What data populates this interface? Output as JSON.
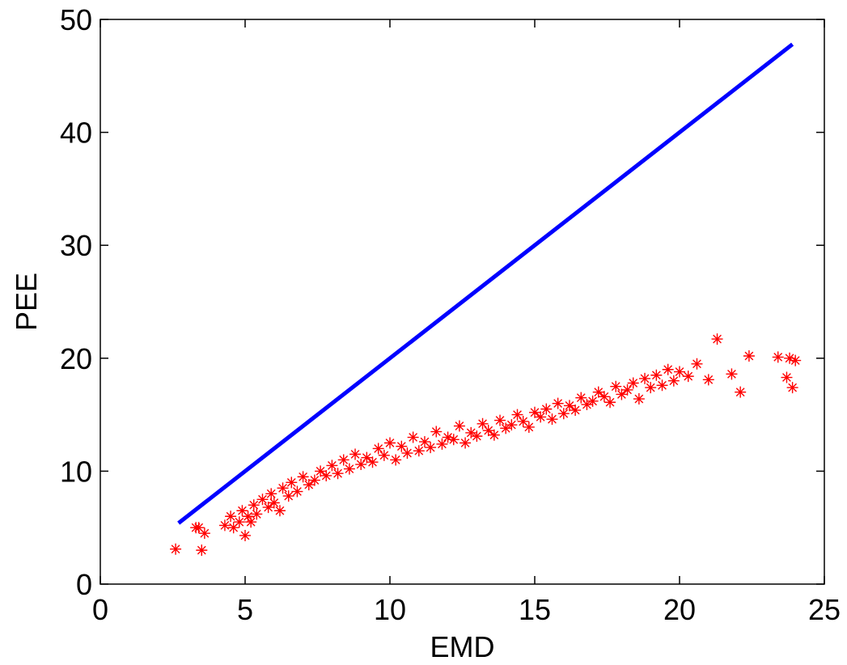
{
  "chart_data": {
    "type": "scatter",
    "title": "",
    "xlabel": "EMD",
    "ylabel": "PEE",
    "xlim": [
      0,
      25
    ],
    "ylim": [
      0,
      50
    ],
    "xticks": [
      0,
      5,
      10,
      15,
      20,
      25
    ],
    "yticks": [
      0,
      10,
      20,
      30,
      40,
      50
    ],
    "grid": false,
    "legend": "none",
    "colors": {
      "line": "#0000ff",
      "points": "#ff0000",
      "axes": "#000000"
    },
    "line": {
      "x": [
        2.7,
        23.9
      ],
      "y": [
        5.4,
        47.8
      ]
    },
    "points": {
      "marker": "asterisk",
      "x": [
        2.6,
        3.3,
        3.4,
        3.6,
        3.5,
        4.3,
        4.5,
        4.6,
        4.8,
        4.9,
        5.0,
        5.1,
        5.2,
        5.3,
        5.4,
        5.6,
        5.8,
        5.9,
        6.0,
        6.2,
        6.3,
        6.5,
        6.6,
        6.8,
        7.0,
        7.2,
        7.4,
        7.6,
        7.8,
        8.0,
        8.2,
        8.4,
        8.6,
        8.8,
        9.0,
        9.2,
        9.4,
        9.6,
        9.8,
        10.0,
        10.2,
        10.4,
        10.6,
        10.8,
        11.0,
        11.2,
        11.4,
        11.6,
        11.8,
        12.0,
        12.2,
        12.4,
        12.6,
        12.8,
        13.0,
        13.2,
        13.4,
        13.6,
        13.8,
        14.0,
        14.2,
        14.4,
        14.6,
        14.8,
        15.0,
        15.2,
        15.4,
        15.6,
        15.8,
        16.0,
        16.2,
        16.4,
        16.6,
        16.8,
        17.0,
        17.2,
        17.4,
        17.6,
        17.8,
        18.0,
        18.2,
        18.4,
        18.6,
        18.8,
        19.0,
        19.2,
        19.4,
        19.6,
        19.8,
        20.0,
        20.3,
        20.6,
        21.0,
        21.3,
        21.8,
        22.1,
        22.4,
        23.4,
        23.7,
        23.9,
        23.8,
        24.0
      ],
      "y": [
        3.1,
        5.0,
        5.0,
        4.5,
        3.0,
        5.2,
        6.0,
        5.0,
        5.5,
        6.5,
        4.3,
        6.0,
        5.5,
        7.0,
        6.2,
        7.5,
        6.8,
        8.0,
        7.2,
        6.5,
        8.5,
        7.8,
        9.0,
        8.2,
        9.5,
        8.8,
        9.2,
        10.0,
        9.6,
        10.5,
        9.8,
        11.0,
        10.2,
        11.5,
        10.6,
        11.2,
        10.8,
        12.0,
        11.4,
        12.5,
        11.0,
        12.2,
        11.6,
        13.0,
        11.8,
        12.6,
        12.1,
        13.5,
        12.4,
        13.0,
        12.8,
        14.0,
        12.5,
        13.4,
        13.1,
        14.2,
        13.6,
        13.2,
        14.5,
        13.8,
        14.1,
        15.0,
        14.4,
        13.9,
        15.2,
        14.8,
        15.5,
        14.6,
        16.0,
        15.1,
        15.8,
        15.4,
        16.5,
        15.9,
        16.2,
        17.0,
        16.6,
        16.1,
        17.5,
        16.8,
        17.2,
        17.8,
        16.4,
        18.2,
        17.4,
        18.5,
        17.6,
        19.0,
        18.0,
        18.8,
        18.4,
        19.5,
        18.1,
        21.7,
        18.6,
        17.0,
        20.2,
        20.1,
        18.3,
        17.4,
        20.0,
        19.8
      ]
    }
  }
}
